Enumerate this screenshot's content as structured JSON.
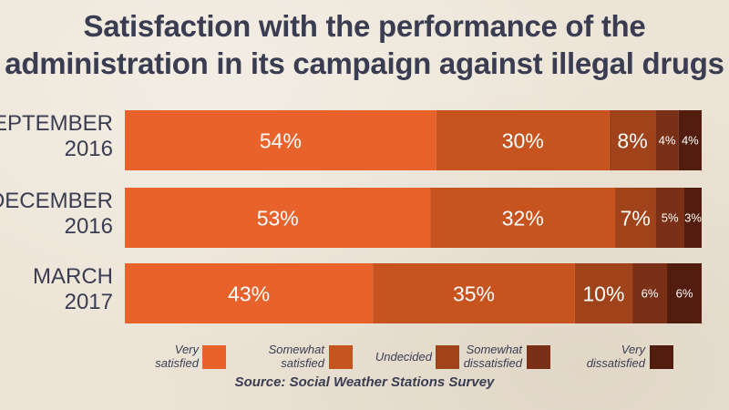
{
  "chart_data": {
    "type": "bar",
    "orientation": "horizontal",
    "stacked": true,
    "title_lines": [
      "Satisfaction with the performance of the",
      "administration in its campaign against illegal drugs"
    ],
    "categories": [
      {
        "lines": [
          "SEPTEMBER",
          "2016"
        ]
      },
      {
        "lines": [
          "DECEMBER",
          "2016"
        ]
      },
      {
        "lines": [
          "MARCH",
          "2017"
        ]
      }
    ],
    "series": [
      {
        "name": "Very satisfied",
        "legend_lines": [
          "Very",
          "satisfied"
        ],
        "color": "#e8622b",
        "values": [
          54,
          53,
          43
        ],
        "labels": [
          "54%",
          "53%",
          "43%"
        ]
      },
      {
        "name": "Somewhat satisfied",
        "legend_lines": [
          "Somewhat",
          "satisfied"
        ],
        "color": "#c7531f",
        "values": [
          30,
          32,
          35
        ],
        "labels": [
          "30%",
          "32%",
          "35%"
        ]
      },
      {
        "name": "Undecided",
        "legend_lines": [
          "Undecided"
        ],
        "color": "#a0431b",
        "values": [
          8,
          7,
          10
        ],
        "labels": [
          "8%",
          "7%",
          "10%"
        ]
      },
      {
        "name": "Somewhat dissatisfied",
        "legend_lines": [
          "Somewhat",
          "dissatisfied"
        ],
        "color": "#7a3017",
        "values": [
          4,
          5,
          6
        ],
        "labels": [
          "4%",
          "5%",
          "6%"
        ]
      },
      {
        "name": "Very dissatisfied",
        "legend_lines": [
          "Very",
          "dissatisfied"
        ],
        "color": "#521c0e",
        "values": [
          4,
          3,
          6
        ],
        "labels": [
          "4%",
          "3%",
          "6%"
        ]
      }
    ],
    "legend_position": "bottom",
    "grid": false
  },
  "source": "Source: Social Weather Stations Survey"
}
